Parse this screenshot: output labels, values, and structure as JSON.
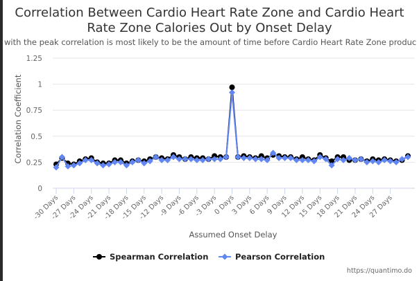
{
  "chart_data": {
    "type": "line",
    "title": "Correlation Between Cardio Heart Rate Zone and Cardio Heart Rate Zone Calories Out by Onset Delay",
    "title_lines": [
      "Correlation Between Cardio Heart Rate Zone and Cardio Heart",
      "Rate Zone Calories Out by Onset Delay"
    ],
    "subtitle": "with the peak correlation is most likely to be the amount of time before Cardio Heart Rate Zone produc",
    "xlabel": "Assumed Onset Delay",
    "ylabel": "Correlation Coefficient",
    "ylim": [
      0,
      1.25
    ],
    "yticks": [
      "0",
      "0.25",
      "0.5",
      "0.75",
      "1",
      "1.25"
    ],
    "xlim": [
      -30,
      30
    ],
    "xticks": [
      "-30 Days",
      "-27 Days",
      "-24 Days",
      "-21 Days",
      "-18 Days",
      "-15 Days",
      "-12 Days",
      "-9 Days",
      "-6 Days",
      "-3 Days",
      "0 Days",
      "3 Days",
      "6 Days",
      "9 Days",
      "12 Days",
      "15 Days",
      "18 Days",
      "21 Days",
      "24 Days",
      "27 Days"
    ],
    "grid": true,
    "legend": "bottom-center",
    "x": [
      -30,
      -29,
      -28,
      -27,
      -26,
      -25,
      -24,
      -23,
      -22,
      -21,
      -20,
      -19,
      -18,
      -17,
      -16,
      -15,
      -14,
      -13,
      -12,
      -11,
      -10,
      -9,
      -8,
      -7,
      -6,
      -5,
      -4,
      -3,
      -2,
      -1,
      0,
      1,
      2,
      3,
      4,
      5,
      6,
      7,
      8,
      9,
      10,
      11,
      12,
      13,
      14,
      15,
      16,
      17,
      18,
      19,
      20,
      21,
      22,
      23,
      24,
      25,
      26,
      27,
      28,
      29,
      30
    ],
    "series": [
      {
        "name": "Spearman Correlation",
        "color": "#000000",
        "marker": "circle",
        "values": [
          0.23,
          0.29,
          0.24,
          0.23,
          0.26,
          0.28,
          0.29,
          0.25,
          0.24,
          0.24,
          0.27,
          0.27,
          0.24,
          0.26,
          0.27,
          0.26,
          0.28,
          0.3,
          0.29,
          0.28,
          0.32,
          0.3,
          0.28,
          0.3,
          0.29,
          0.29,
          0.28,
          0.31,
          0.3,
          0.3,
          0.97,
          0.3,
          0.31,
          0.3,
          0.29,
          0.31,
          0.29,
          0.32,
          0.31,
          0.3,
          0.3,
          0.28,
          0.3,
          0.28,
          0.27,
          0.32,
          0.29,
          0.26,
          0.3,
          0.3,
          0.27,
          0.27,
          0.28,
          0.26,
          0.28,
          0.27,
          0.28,
          0.27,
          0.26,
          0.27,
          0.31
        ]
      },
      {
        "name": "Pearson Correlation",
        "color": "#6287f2",
        "marker": "diamond",
        "values": [
          0.2,
          0.3,
          0.21,
          0.22,
          0.24,
          0.27,
          0.27,
          0.24,
          0.22,
          0.23,
          0.25,
          0.25,
          0.22,
          0.25,
          0.27,
          0.24,
          0.26,
          0.3,
          0.27,
          0.27,
          0.3,
          0.28,
          0.28,
          0.28,
          0.27,
          0.27,
          0.28,
          0.28,
          0.28,
          0.3,
          0.92,
          0.3,
          0.29,
          0.29,
          0.28,
          0.28,
          0.27,
          0.34,
          0.29,
          0.29,
          0.29,
          0.27,
          0.27,
          0.27,
          0.26,
          0.3,
          0.28,
          0.22,
          0.28,
          0.27,
          0.29,
          0.27,
          0.28,
          0.25,
          0.26,
          0.25,
          0.27,
          0.26,
          0.25,
          0.28,
          0.3
        ]
      }
    ]
  },
  "footer": {
    "source_label": "https://quantimo.do"
  }
}
